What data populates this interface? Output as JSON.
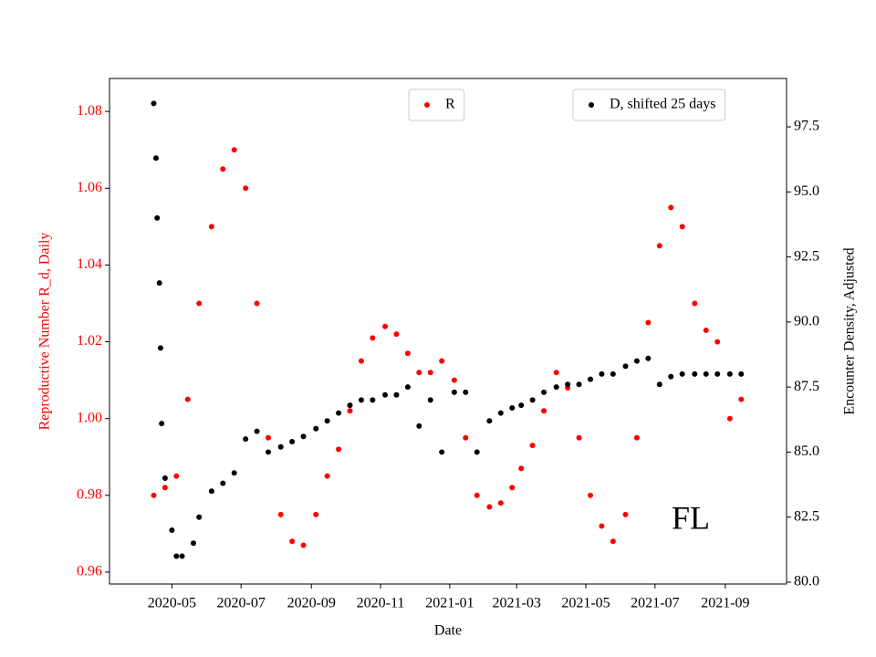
{
  "chart_data": {
    "type": "scatter",
    "x_label": "Date",
    "y_label": "Reproductive Number R_d, Daily",
    "y2_label": "Encounter Density, Adjusted",
    "annotation": "FL",
    "xlim": [
      "2020-03-07",
      "2021-10-25"
    ],
    "xticks": [
      "2020-05",
      "2020-07",
      "2020-09",
      "2020-11",
      "2021-01",
      "2021-03",
      "2021-05",
      "2021-07",
      "2021-09"
    ],
    "ylim": [
      0.9569,
      1.0886
    ],
    "yticks": [
      0.96,
      0.98,
      {
        "value": 1.0,
        "label": "1.00"
      },
      1.02,
      1.04,
      1.06,
      1.08
    ],
    "y2lim": [
      79.93,
      99.36
    ],
    "y2ticks": [
      {
        "value": 80,
        "label": "80.0"
      },
      82.5,
      {
        "value": 85,
        "label": "85.0"
      },
      87.5,
      {
        "value": 90,
        "label": "90.0"
      },
      92.5,
      {
        "value": 95,
        "label": "95.0"
      },
      97.5
    ],
    "series": [
      {
        "name": "R",
        "color": "#ff0000",
        "axis": "y",
        "legend": "upper center",
        "x": [
          "2020-04-15",
          "2020-04-25",
          "2020-05-05",
          "2020-05-15",
          "2020-05-25",
          "2020-06-05",
          "2020-06-15",
          "2020-06-25",
          "2020-07-05",
          "2020-07-15",
          "2020-07-25",
          "2020-08-05",
          "2020-08-15",
          "2020-08-25",
          "2020-09-05",
          "2020-09-15",
          "2020-09-25",
          "2020-10-05",
          "2020-10-15",
          "2020-10-25",
          "2020-11-05",
          "2020-11-15",
          "2020-11-25",
          "2020-12-05",
          "2020-12-15",
          "2020-12-25",
          "2021-01-05",
          "2021-01-15",
          "2021-01-25",
          "2021-02-05",
          "2021-02-15",
          "2021-02-25",
          "2021-03-05",
          "2021-03-15",
          "2021-03-25",
          "2021-04-05",
          "2021-04-15",
          "2021-04-25",
          "2021-05-05",
          "2021-05-15",
          "2021-05-25",
          "2021-06-05",
          "2021-06-15",
          "2021-06-25",
          "2021-07-05",
          "2021-07-15",
          "2021-07-25",
          "2021-08-05",
          "2021-08-15",
          "2021-08-25",
          "2021-09-05",
          "2021-09-15"
        ],
        "values": [
          0.98,
          0.982,
          0.985,
          1.005,
          1.03,
          1.05,
          1.065,
          1.07,
          1.06,
          1.03,
          0.995,
          0.975,
          0.968,
          0.967,
          0.975,
          0.985,
          0.992,
          1.002,
          1.015,
          1.021,
          1.024,
          1.022,
          1.017,
          1.012,
          1.012,
          1.015,
          1.01,
          0.995,
          0.98,
          0.977,
          0.978,
          0.982,
          0.987,
          0.993,
          1.002,
          1.012,
          1.008,
          0.995,
          0.98,
          0.972,
          0.968,
          0.975,
          0.995,
          1.025,
          1.045,
          1.055,
          1.05,
          1.03,
          1.023,
          1.02,
          1.0,
          1.005
        ]
      },
      {
        "name": "D, shifted 25 days",
        "color": "#000000",
        "axis": "y2",
        "legend": "upper right",
        "x": [
          "2020-04-15",
          "2020-04-17",
          "2020-04-18",
          "2020-04-20",
          "2020-04-21",
          "2020-04-22",
          "2020-04-25",
          "2020-05-01",
          "2020-05-05",
          "2020-05-10",
          "2020-05-20",
          "2020-05-25",
          "2020-06-05",
          "2020-06-15",
          "2020-06-25",
          "2020-07-05",
          "2020-07-15",
          "2020-07-25",
          "2020-08-05",
          "2020-08-15",
          "2020-08-25",
          "2020-09-05",
          "2020-09-15",
          "2020-09-25",
          "2020-10-05",
          "2020-10-15",
          "2020-10-25",
          "2020-11-05",
          "2020-11-15",
          "2020-11-25",
          "2020-12-05",
          "2020-12-15",
          "2020-12-25",
          "2021-01-05",
          "2021-01-15",
          "2021-01-25",
          "2021-02-05",
          "2021-02-15",
          "2021-02-25",
          "2021-03-05",
          "2021-03-15",
          "2021-03-25",
          "2021-04-05",
          "2021-04-15",
          "2021-04-25",
          "2021-05-05",
          "2021-05-15",
          "2021-05-25",
          "2021-06-05",
          "2021-06-15",
          "2021-06-25",
          "2021-07-05",
          "2021-07-15",
          "2021-07-25",
          "2021-08-05",
          "2021-08-15",
          "2021-08-25",
          "2021-09-05",
          "2021-09-15"
        ],
        "values": [
          98.4,
          96.3,
          94.0,
          91.5,
          89.0,
          86.1,
          84.0,
          82.0,
          81.0,
          81.0,
          81.5,
          82.5,
          83.5,
          83.8,
          84.2,
          85.5,
          85.8,
          85.0,
          85.2,
          85.4,
          85.6,
          85.9,
          86.2,
          86.5,
          86.8,
          87.0,
          87.0,
          87.2,
          87.2,
          87.5,
          86.0,
          87.0,
          85.0,
          87.3,
          87.3,
          85.0,
          86.2,
          86.5,
          86.7,
          86.8,
          87.0,
          87.3,
          87.5,
          87.6,
          87.6,
          87.8,
          88.0,
          88.0,
          88.3,
          88.5,
          88.6,
          87.6,
          87.9,
          88.0,
          88.0,
          88.0,
          88.0,
          88.0,
          88.0
        ]
      }
    ]
  }
}
